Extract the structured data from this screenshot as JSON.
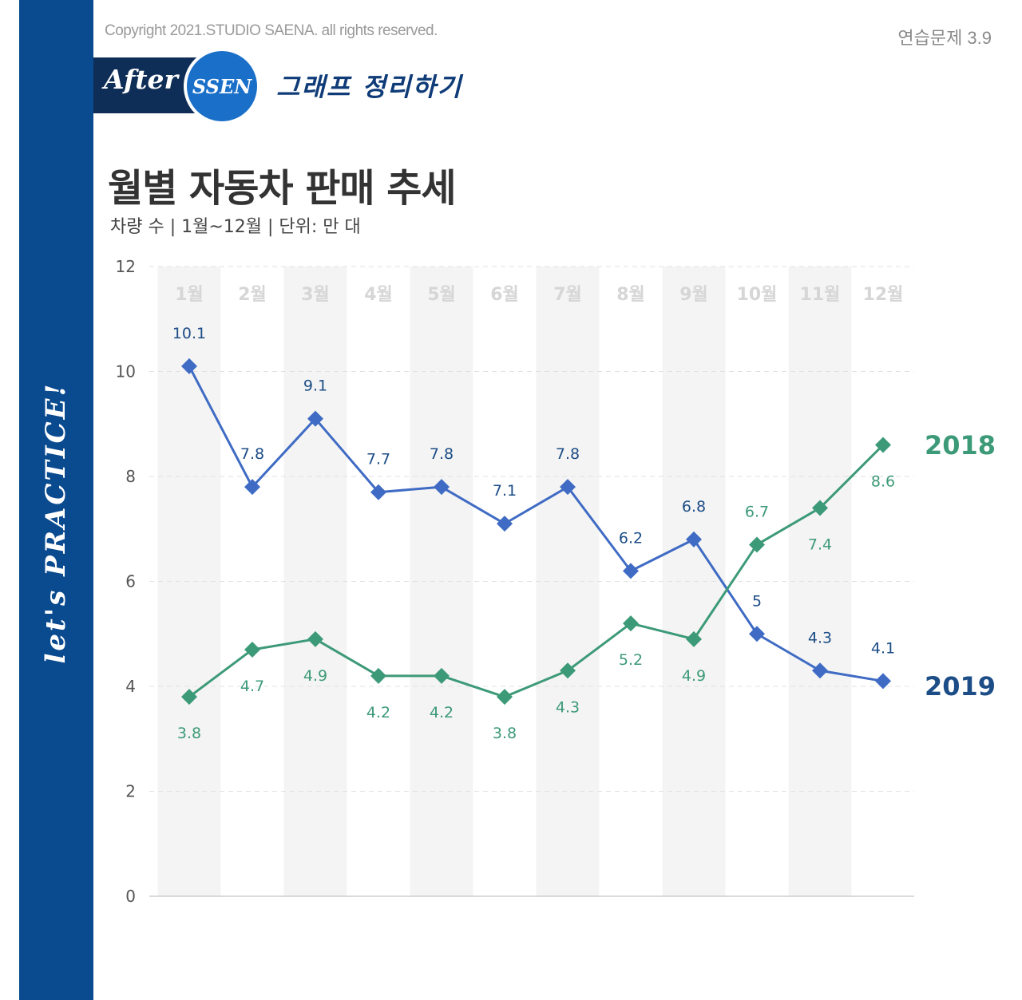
{
  "header": {
    "copyright": "Copyright 2021.STUDIO SAENA. all rights reserved.",
    "exercise": "연습문제 3.9",
    "after": "After",
    "ssen": "SSEN",
    "section": "그래프 정리하기",
    "side": "let's PRACTICE!"
  },
  "colors": {
    "sidebar": "#0a4a8f",
    "series_2019": "#3f6bc4",
    "series_2018": "#3d9a78",
    "label_2019": "#1c4d86",
    "label_2018": "#3d9a78"
  },
  "chart_data": {
    "type": "line",
    "title": "월별 자동차 판매 추세",
    "subtitle": "차량 수 | 1월~12월 | 단위: 만 대",
    "categories": [
      "1월",
      "2월",
      "3월",
      "4월",
      "5월",
      "6월",
      "7월",
      "8월",
      "9월",
      "10월",
      "11월",
      "12월"
    ],
    "y_ticks": [
      "0",
      "2",
      "4",
      "6",
      "8",
      "10",
      "12"
    ],
    "ylim": [
      0,
      12
    ],
    "series": [
      {
        "name": "2019",
        "values": [
          10.1,
          7.8,
          9.1,
          7.7,
          7.8,
          7.1,
          7.8,
          6.2,
          6.8,
          5,
          4.3,
          4.1
        ],
        "labels": [
          "10.1",
          "7.8",
          "9.1",
          "7.7",
          "7.8",
          "7.1",
          "7.8",
          "6.2",
          "6.8",
          "5",
          "4.3",
          "4.1"
        ]
      },
      {
        "name": "2018",
        "values": [
          3.8,
          4.7,
          4.9,
          4.2,
          4.2,
          3.8,
          4.3,
          5.2,
          4.9,
          6.7,
          7.4,
          8.6
        ],
        "labels": [
          "3.8",
          "4.7",
          "4.9",
          "4.2",
          "4.2",
          "3.8",
          "4.3",
          "5.2",
          "4.9",
          "6.7",
          "7.4",
          "8.6"
        ]
      }
    ]
  }
}
